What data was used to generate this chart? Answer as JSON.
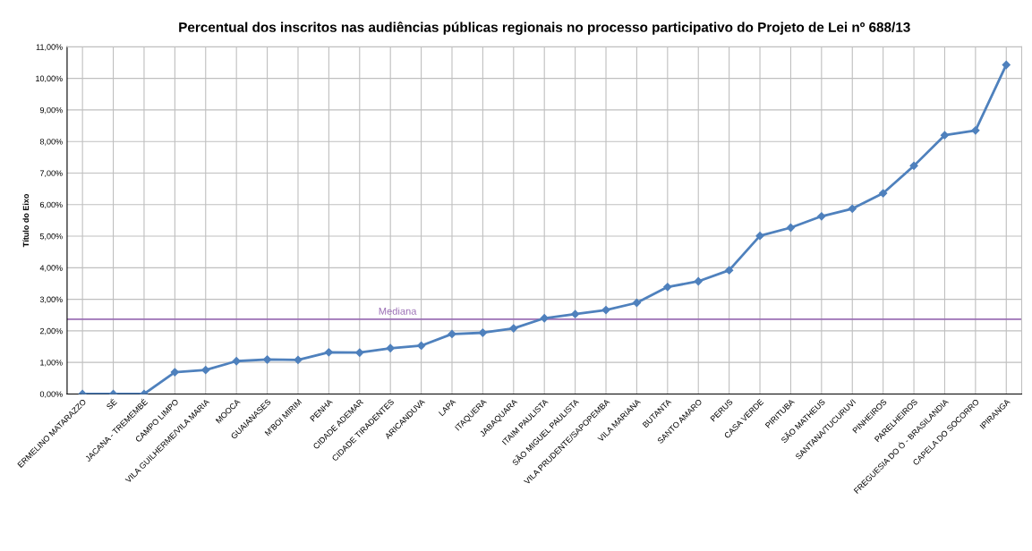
{
  "chart_data": {
    "type": "line",
    "title": "Percentual dos inscritos nas audiências públicas regionais no processo participativo do Projeto de Lei nº 688/13",
    "ylabel": "Título do Eixo",
    "categories": [
      "ERMELINO MATARAZZO",
      "SÉ",
      "JACANA - TREMEMBÉ",
      "CAMPO LIMPO",
      "VILA GUILHERME/VILA MARIA",
      "MOOCA",
      "GUAIANASES",
      "M'BOI MIRIM",
      "PENHA",
      "CIDADE ADEMAR",
      "CIDADE TIRADENTES",
      "ARICANDUVA",
      "LAPA",
      "ITAQUERA",
      "JABAQUARA",
      "ITAIM PAULISTA",
      "SÃO MIGUEL PAULISTA",
      "VILA PRUDENTE/SAPOPEMBA",
      "VILA MARIANA",
      "BUTANTA",
      "SANTO AMARO",
      "PERUS",
      "CASA VERDE",
      "PIRITUBA",
      "SÃO MATHEUS",
      "SANTANA/TUCURUVI",
      "PINHEIROS",
      "PARELHEIROS",
      "FREGUESIA DO Ó - BRASILANDIA",
      "CAPELA DO SOCORRO",
      "IPIRANGA"
    ],
    "series": [
      {
        "color": "#4f81bd",
        "values": [
          0,
          0,
          0,
          0.69,
          0.76,
          1.04,
          1.09,
          1.08,
          1.32,
          1.31,
          1.45,
          1.53,
          1.9,
          1.94,
          2.08,
          2.4,
          2.53,
          2.66,
          2.89,
          3.39,
          3.57,
          3.92,
          5.01,
          5.27,
          5.63,
          5.87,
          6.36,
          7.23,
          8.2,
          8.35,
          10.43
        ]
      }
    ],
    "ylim": [
      0,
      11
    ],
    "yticks": [
      {
        "value": 0,
        "label": "0,00%"
      },
      {
        "value": 1,
        "label": "1,00%"
      },
      {
        "value": 2,
        "label": "2,00%"
      },
      {
        "value": 3,
        "label": "3,00%"
      },
      {
        "value": 4,
        "label": "4,00%"
      },
      {
        "value": 5,
        "label": "5,00%"
      },
      {
        "value": 6,
        "label": "6,00%"
      },
      {
        "value": 7,
        "label": "7,00%"
      },
      {
        "value": 8,
        "label": "8,00%"
      },
      {
        "value": 9,
        "label": "9,00%"
      },
      {
        "value": 10,
        "label": "10,00%"
      },
      {
        "value": 11,
        "label": "11,00%"
      }
    ],
    "ref_lines": [
      {
        "axis": "y",
        "value": 2.37,
        "label": "Mediana",
        "color": "#9b6fb5"
      }
    ],
    "grid": true,
    "marker": "diamond",
    "line_style": "solid"
  }
}
